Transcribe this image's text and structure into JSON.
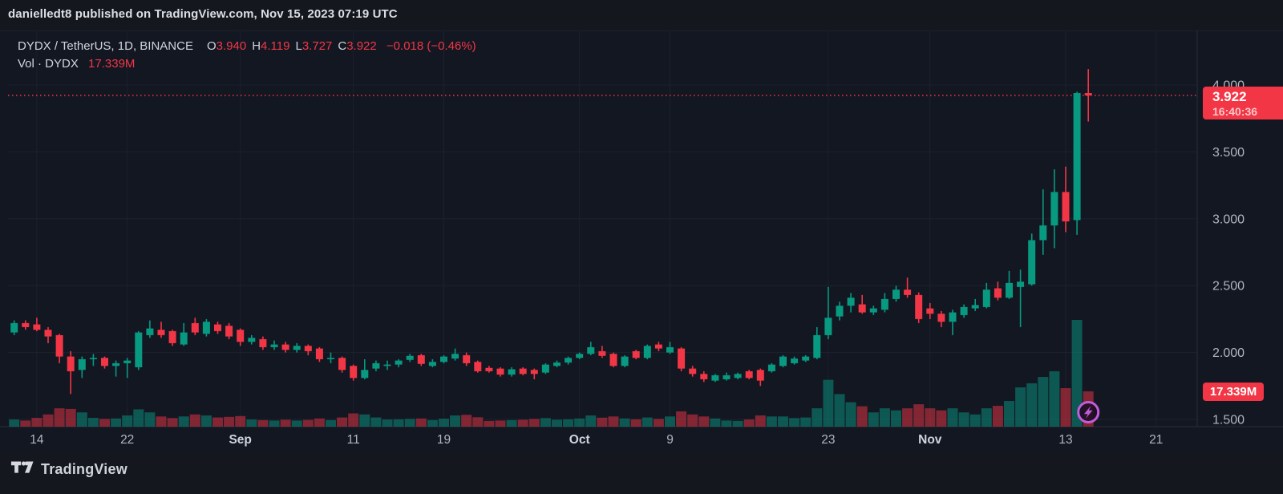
{
  "header": {
    "published_line": "danielledt8 published on TradingView.com, Nov 15, 2023 07:19 UTC"
  },
  "legend": {
    "symbol_title": "DYDX / TetherUS, 1D, BINANCE",
    "ohlc": [
      {
        "label": "O",
        "value": "3.940"
      },
      {
        "label": "H",
        "value": "4.119"
      },
      {
        "label": "L",
        "value": "3.727"
      },
      {
        "label": "C",
        "value": "3.922"
      }
    ],
    "change": "−0.018 (−0.46%)",
    "volume_label": "Vol · DYDX",
    "volume_value": "17.339M"
  },
  "last_price_badge": {
    "price": "3.922",
    "countdown": "16:40:36"
  },
  "volume_badge": {
    "value": "17.339M"
  },
  "footer": {
    "brand": "TradingView",
    "logo_icon": "tradingview-logo-icon"
  },
  "colors": {
    "background": "#131722",
    "outer_background": "#14171e",
    "grid": "#1c212e",
    "axis_text": "#b2b5be",
    "month_text": "#d1d4dc",
    "up": "#089981",
    "down": "#f23645",
    "badge": "#f23645",
    "marker_purple": "#c45bdb"
  },
  "chart_data": {
    "type": "candlestick",
    "title": "DYDX / TetherUS, 1D, BINANCE",
    "interval": "1D",
    "last_price": 3.922,
    "price_change": -0.018,
    "price_change_pct": -0.46,
    "current_volume_m": 17.339,
    "y_ticks": [
      {
        "value": 4.0,
        "label": "4.000"
      },
      {
        "value": 3.5,
        "label": "3.500"
      },
      {
        "value": 3.0,
        "label": "3.000"
      },
      {
        "value": 2.5,
        "label": "2.500"
      },
      {
        "value": 2.0,
        "label": "2.000"
      },
      {
        "value": 1.5,
        "label": "1.500"
      }
    ],
    "ylim": [
      1.45,
      4.25
    ],
    "grid": true,
    "x_ticks": [
      {
        "label": "14",
        "index": 2,
        "month": false
      },
      {
        "label": "22",
        "index": 10,
        "month": false
      },
      {
        "label": "Sep",
        "index": 20,
        "month": true
      },
      {
        "label": "11",
        "index": 30,
        "month": false
      },
      {
        "label": "19",
        "index": 38,
        "month": false
      },
      {
        "label": "Oct",
        "index": 50,
        "month": true
      },
      {
        "label": "9",
        "index": 58,
        "month": false
      },
      {
        "label": "23",
        "index": 72,
        "month": false
      },
      {
        "label": "Nov",
        "index": 81,
        "month": true
      },
      {
        "label": "13",
        "index": 93,
        "month": false
      },
      {
        "label": "21",
        "index": 101,
        "month": false
      }
    ],
    "volume_unit": "M",
    "marker": {
      "type": "lightning-spark",
      "date": "Nov 15",
      "candle_index": 95
    },
    "candles_format": [
      "date",
      "open",
      "high",
      "low",
      "close",
      "volume_m"
    ],
    "candles": [
      [
        "Aug 12",
        2.15,
        2.24,
        2.13,
        2.22,
        3.5
      ],
      [
        "Aug 13",
        2.22,
        2.24,
        2.17,
        2.19,
        3.0
      ],
      [
        "Aug 14",
        2.21,
        2.26,
        2.16,
        2.17,
        4.3
      ],
      [
        "Aug 15",
        2.17,
        2.19,
        2.07,
        2.12,
        6.0
      ],
      [
        "Aug 16",
        2.13,
        2.14,
        1.92,
        1.97,
        9.0
      ],
      [
        "Aug 17",
        1.97,
        2.01,
        1.69,
        1.86,
        8.7
      ],
      [
        "Aug 18",
        1.87,
        1.97,
        1.81,
        1.95,
        7.0
      ],
      [
        "Aug 19",
        1.95,
        1.99,
        1.9,
        1.96,
        4.3
      ],
      [
        "Aug 20",
        1.96,
        1.97,
        1.88,
        1.9,
        3.8
      ],
      [
        "Aug 21",
        1.9,
        1.94,
        1.82,
        1.92,
        4.0
      ],
      [
        "Aug 22",
        1.92,
        1.96,
        1.81,
        1.94,
        5.5
      ],
      [
        "Aug 23",
        1.89,
        2.16,
        1.87,
        2.15,
        8.5
      ],
      [
        "Aug 24",
        2.13,
        2.24,
        2.11,
        2.18,
        7.0
      ],
      [
        "Aug 25",
        2.17,
        2.23,
        2.11,
        2.13,
        5.0
      ],
      [
        "Aug 26",
        2.16,
        2.17,
        2.05,
        2.07,
        4.2
      ],
      [
        "Aug 27",
        2.06,
        2.22,
        2.05,
        2.15,
        5.0
      ],
      [
        "Aug 28",
        2.22,
        2.26,
        2.13,
        2.15,
        6.0
      ],
      [
        "Aug 29",
        2.14,
        2.25,
        2.12,
        2.23,
        5.5
      ],
      [
        "Aug 30",
        2.21,
        2.23,
        2.14,
        2.16,
        4.5
      ],
      [
        "Aug 31",
        2.2,
        2.22,
        2.1,
        2.12,
        4.8
      ],
      [
        "Sep 1",
        2.17,
        2.18,
        2.05,
        2.08,
        5.2
      ],
      [
        "Sep 2",
        2.08,
        2.13,
        2.06,
        2.11,
        3.5
      ],
      [
        "Sep 3",
        2.1,
        2.12,
        2.02,
        2.04,
        3.2
      ],
      [
        "Sep 4",
        2.04,
        2.09,
        2.02,
        2.06,
        3.0
      ],
      [
        "Sep 5",
        2.06,
        2.08,
        2.0,
        2.02,
        3.4
      ],
      [
        "Sep 6",
        2.02,
        2.07,
        2.0,
        2.05,
        3.0
      ],
      [
        "Sep 7",
        2.05,
        2.06,
        1.98,
        2.01,
        3.3
      ],
      [
        "Sep 8",
        2.03,
        2.04,
        1.93,
        1.95,
        4.0
      ],
      [
        "Sep 9",
        1.95,
        2.0,
        1.92,
        1.96,
        3.2
      ],
      [
        "Sep 10",
        1.96,
        1.97,
        1.85,
        1.87,
        4.5
      ],
      [
        "Sep 11",
        1.9,
        1.91,
        1.79,
        1.81,
        6.5
      ],
      [
        "Sep 12",
        1.81,
        1.95,
        1.8,
        1.87,
        6.0
      ],
      [
        "Sep 13",
        1.88,
        1.94,
        1.86,
        1.92,
        4.5
      ],
      [
        "Sep 14",
        1.9,
        1.94,
        1.87,
        1.91,
        3.5
      ],
      [
        "Sep 15",
        1.91,
        1.95,
        1.89,
        1.94,
        3.6
      ],
      [
        "Sep 16",
        1.945,
        1.99,
        1.93,
        1.975,
        3.8
      ],
      [
        "Sep 17",
        1.98,
        1.99,
        1.9,
        1.915,
        4.0
      ],
      [
        "Sep 18",
        1.9,
        1.95,
        1.89,
        1.93,
        3.2
      ],
      [
        "Sep 19",
        1.93,
        1.98,
        1.92,
        1.97,
        3.9
      ],
      [
        "Sep 20",
        1.955,
        2.03,
        1.94,
        1.99,
        5.5
      ],
      [
        "Sep 21",
        1.98,
        2.0,
        1.9,
        1.92,
        5.8
      ],
      [
        "Sep 22",
        1.93,
        1.94,
        1.85,
        1.86,
        4.6
      ],
      [
        "Sep 23",
        1.885,
        1.9,
        1.85,
        1.86,
        2.8
      ],
      [
        "Sep 24",
        1.88,
        1.89,
        1.82,
        1.835,
        3.0
      ],
      [
        "Sep 25",
        1.835,
        1.89,
        1.82,
        1.875,
        3.2
      ],
      [
        "Sep 26",
        1.88,
        1.89,
        1.83,
        1.84,
        3.4
      ],
      [
        "Sep 27",
        1.87,
        1.88,
        1.8,
        1.84,
        3.8
      ],
      [
        "Sep 28",
        1.85,
        1.92,
        1.84,
        1.91,
        4.2
      ],
      [
        "Sep 29",
        1.9,
        1.94,
        1.89,
        1.925,
        3.4
      ],
      [
        "Sep 30",
        1.925,
        1.97,
        1.91,
        1.96,
        3.6
      ],
      [
        "Oct 1",
        1.96,
        2.0,
        1.95,
        1.99,
        4.0
      ],
      [
        "Oct 2",
        1.99,
        2.08,
        1.98,
        2.04,
        5.5
      ],
      [
        "Oct 3",
        2.01,
        2.05,
        1.96,
        1.975,
        4.4
      ],
      [
        "Oct 4",
        1.99,
        2.0,
        1.89,
        1.9,
        5.0
      ],
      [
        "Oct 5",
        1.9,
        1.98,
        1.89,
        1.97,
        4.0
      ],
      [
        "Oct 6",
        2.01,
        2.02,
        1.95,
        1.96,
        3.6
      ],
      [
        "Oct 7",
        1.96,
        2.06,
        1.95,
        2.05,
        4.5
      ],
      [
        "Oct 8",
        2.06,
        2.08,
        2.01,
        2.03,
        3.8
      ],
      [
        "Oct 9",
        2.0,
        2.08,
        1.99,
        2.04,
        5.0
      ],
      [
        "Oct 10",
        2.03,
        2.04,
        1.86,
        1.88,
        7.5
      ],
      [
        "Oct 11",
        1.88,
        1.9,
        1.82,
        1.84,
        6.0
      ],
      [
        "Oct 12",
        1.84,
        1.86,
        1.78,
        1.8,
        5.0
      ],
      [
        "Oct 13",
        1.79,
        1.84,
        1.78,
        1.83,
        4.0
      ],
      [
        "Oct 14",
        1.8,
        1.85,
        1.79,
        1.83,
        3.0
      ],
      [
        "Oct 15",
        1.81,
        1.85,
        1.8,
        1.84,
        2.8
      ],
      [
        "Oct 16",
        1.86,
        1.87,
        1.8,
        1.81,
        3.5
      ],
      [
        "Oct 17",
        1.87,
        1.88,
        1.75,
        1.79,
        5.5
      ],
      [
        "Oct 18",
        1.86,
        1.92,
        1.85,
        1.91,
        5.0
      ],
      [
        "Oct 19",
        1.9,
        1.98,
        1.89,
        1.97,
        5.0
      ],
      [
        "Oct 20",
        1.92,
        1.97,
        1.91,
        1.955,
        4.2
      ],
      [
        "Oct 21",
        1.94,
        1.98,
        1.93,
        1.97,
        4.5
      ],
      [
        "Oct 22",
        1.96,
        2.19,
        1.95,
        2.13,
        9.0
      ],
      [
        "Oct 23",
        2.13,
        2.49,
        2.1,
        2.26,
        23.0
      ],
      [
        "Oct 24",
        2.27,
        2.38,
        2.24,
        2.35,
        16.0
      ],
      [
        "Oct 25",
        2.35,
        2.445,
        2.3,
        2.41,
        12.0
      ],
      [
        "Oct 26",
        2.36,
        2.43,
        2.29,
        2.3,
        10.0
      ],
      [
        "Oct 27",
        2.3,
        2.35,
        2.28,
        2.33,
        7.0
      ],
      [
        "Oct 28",
        2.32,
        2.445,
        2.3,
        2.4,
        9.0
      ],
      [
        "Oct 29",
        2.4,
        2.5,
        2.38,
        2.47,
        8.0
      ],
      [
        "Oct 30",
        2.47,
        2.56,
        2.41,
        2.43,
        9.0
      ],
      [
        "Oct 31",
        2.43,
        2.45,
        2.22,
        2.25,
        11.0
      ],
      [
        "Nov 1",
        2.33,
        2.37,
        2.25,
        2.29,
        9.0
      ],
      [
        "Nov 2",
        2.29,
        2.31,
        2.19,
        2.23,
        8.0
      ],
      [
        "Nov 3",
        2.23,
        2.32,
        2.13,
        2.3,
        9.0
      ],
      [
        "Nov 4",
        2.28,
        2.36,
        2.26,
        2.34,
        7.0
      ],
      [
        "Nov 5",
        2.33,
        2.4,
        2.31,
        2.355,
        6.0
      ],
      [
        "Nov 6",
        2.34,
        2.52,
        2.33,
        2.47,
        9.0
      ],
      [
        "Nov 7",
        2.48,
        2.53,
        2.39,
        2.41,
        10.2
      ],
      [
        "Nov 8",
        2.41,
        2.61,
        2.4,
        2.52,
        12.6
      ],
      [
        "Nov 9",
        2.49,
        2.62,
        2.19,
        2.53,
        19.3
      ],
      [
        "Nov 10",
        2.51,
        2.89,
        2.5,
        2.84,
        21.3
      ],
      [
        "Nov 11",
        2.84,
        3.22,
        2.73,
        2.95,
        24.4
      ],
      [
        "Nov 12",
        2.95,
        3.37,
        2.78,
        3.2,
        27.2
      ],
      [
        "Nov 13",
        3.2,
        3.39,
        2.9,
        2.98,
        18.9
      ],
      [
        "Nov 14",
        2.99,
        3.95,
        2.88,
        3.94,
        52.4
      ],
      [
        "Nov 15",
        3.94,
        4.119,
        3.727,
        3.922,
        17.339
      ]
    ]
  }
}
